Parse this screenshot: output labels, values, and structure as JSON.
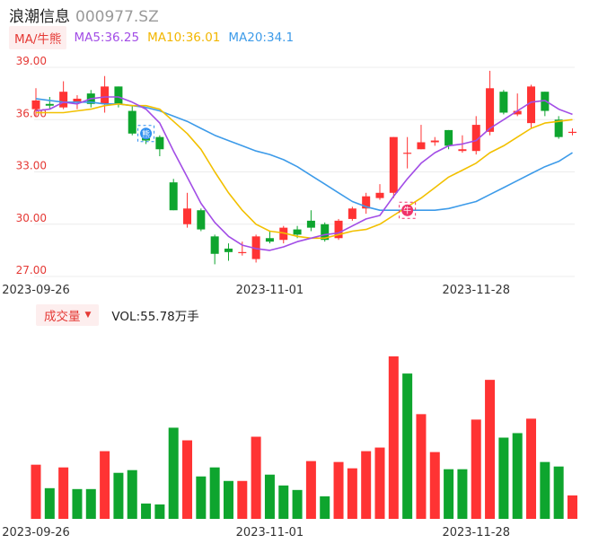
{
  "header": {
    "name": "浪潮信息",
    "code": "000977.SZ"
  },
  "ma_legend": {
    "toggle_label": "MA/牛熊",
    "ma5": "MA5:36.25",
    "ma10": "MA10:36.01",
    "ma20": "MA20:34.1"
  },
  "volume_legend": {
    "toggle_label": "成交量",
    "value": "VOL:55.78万手"
  },
  "colors": {
    "up": "#ff3333",
    "down": "#0ea52e",
    "ma5": "#a24de6",
    "ma10": "#f2c000",
    "ma20": "#3d9be9",
    "grid": "#ececec",
    "axis_label": "#e53935"
  },
  "markers": {
    "sell": "熊",
    "buy": "牛"
  },
  "chart_data": [
    {
      "type": "candlestick",
      "y_ticks": [
        "39.00",
        "36.00",
        "33.00",
        "30.00",
        "27.00"
      ],
      "ylim": [
        27.0,
        39.0
      ],
      "x_tick_labels": [
        {
          "index": 0,
          "label": "2023-09-26"
        },
        {
          "index": 17,
          "label": "2023-11-01"
        },
        {
          "index": 32,
          "label": "2023-11-28"
        }
      ],
      "candles": [
        {
          "o": 36.6,
          "c": 37.1,
          "h": 37.8,
          "l": 36.2
        },
        {
          "o": 36.9,
          "c": 36.8,
          "h": 37.3,
          "l": 36.6
        },
        {
          "o": 36.7,
          "c": 37.6,
          "h": 38.2,
          "l": 36.6
        },
        {
          "o": 37.0,
          "c": 37.2,
          "h": 37.4,
          "l": 36.6
        },
        {
          "o": 37.5,
          "c": 36.9,
          "h": 37.7,
          "l": 36.7
        },
        {
          "o": 36.9,
          "c": 37.9,
          "h": 38.5,
          "l": 36.4
        },
        {
          "o": 37.9,
          "c": 36.9,
          "h": 37.9,
          "l": 36.7
        },
        {
          "o": 36.5,
          "c": 35.2,
          "h": 36.8,
          "l": 35.1
        },
        {
          "o": 35.2,
          "c": 34.8,
          "h": 35.3,
          "l": 34.6
        },
        {
          "o": 35.0,
          "c": 34.3,
          "h": 35.1,
          "l": 33.9
        },
        {
          "o": 32.4,
          "c": 30.8,
          "h": 32.6,
          "l": 30.8
        },
        {
          "o": 30.0,
          "c": 30.9,
          "h": 31.8,
          "l": 29.8
        },
        {
          "o": 30.8,
          "c": 29.7,
          "h": 30.9,
          "l": 29.6
        },
        {
          "o": 29.3,
          "c": 28.3,
          "h": 29.4,
          "l": 27.7
        },
        {
          "o": 28.6,
          "c": 28.4,
          "h": 28.9,
          "l": 27.9
        },
        {
          "o": 28.4,
          "c": 28.4,
          "h": 29.0,
          "l": 28.2
        },
        {
          "o": 28.0,
          "c": 29.3,
          "h": 29.4,
          "l": 27.8
        },
        {
          "o": 29.2,
          "c": 29.0,
          "h": 29.6,
          "l": 28.9
        },
        {
          "o": 29.1,
          "c": 29.8,
          "h": 29.9,
          "l": 28.9
        },
        {
          "o": 29.7,
          "c": 29.4,
          "h": 29.9,
          "l": 29.2
        },
        {
          "o": 30.2,
          "c": 29.8,
          "h": 30.8,
          "l": 29.6
        },
        {
          "o": 30.0,
          "c": 29.1,
          "h": 30.1,
          "l": 29.0
        },
        {
          "o": 29.2,
          "c": 30.2,
          "h": 30.3,
          "l": 29.1
        },
        {
          "o": 30.3,
          "c": 30.9,
          "h": 31.0,
          "l": 30.2
        },
        {
          "o": 30.9,
          "c": 31.6,
          "h": 31.8,
          "l": 30.6
        },
        {
          "o": 31.5,
          "c": 31.8,
          "h": 32.3,
          "l": 31.4
        },
        {
          "o": 31.8,
          "c": 35.0,
          "h": 35.0,
          "l": 31.5
        },
        {
          "o": 34.1,
          "c": 34.1,
          "h": 35.0,
          "l": 33.2
        },
        {
          "o": 34.3,
          "c": 34.7,
          "h": 35.7,
          "l": 34.3
        },
        {
          "o": 34.7,
          "c": 34.8,
          "h": 35.0,
          "l": 34.5
        },
        {
          "o": 35.4,
          "c": 34.5,
          "h": 35.4,
          "l": 34.3
        },
        {
          "o": 34.2,
          "c": 34.3,
          "h": 35.1,
          "l": 34.1
        },
        {
          "o": 34.2,
          "c": 35.7,
          "h": 36.2,
          "l": 34.0
        },
        {
          "o": 35.3,
          "c": 37.8,
          "h": 38.8,
          "l": 35.1
        },
        {
          "o": 37.6,
          "c": 36.4,
          "h": 37.7,
          "l": 36.3
        },
        {
          "o": 36.3,
          "c": 36.5,
          "h": 37.5,
          "l": 36.2
        },
        {
          "o": 35.8,
          "c": 37.9,
          "h": 38.0,
          "l": 35.5
        },
        {
          "o": 37.6,
          "c": 36.5,
          "h": 37.6,
          "l": 36.2
        },
        {
          "o": 36.0,
          "c": 35.0,
          "h": 36.2,
          "l": 34.9
        },
        {
          "o": 35.3,
          "c": 35.3,
          "h": 35.5,
          "l": 35.1
        }
      ],
      "ma5": [
        36.5,
        36.6,
        37.0,
        36.9,
        37.2,
        37.3,
        37.3,
        37.0,
        36.6,
        35.8,
        34.2,
        32.7,
        31.2,
        30.1,
        29.3,
        28.8,
        28.6,
        28.5,
        28.7,
        29.0,
        29.2,
        29.4,
        29.5,
        29.9,
        30.3,
        30.5,
        31.6,
        32.6,
        33.5,
        34.1,
        34.5,
        34.6,
        34.8,
        35.5,
        36.0,
        36.5,
        37.0,
        37.1,
        36.6,
        36.3
      ],
      "ma10": [
        36.4,
        36.4,
        36.4,
        36.5,
        36.6,
        36.8,
        36.9,
        36.8,
        36.8,
        36.6,
        35.9,
        35.2,
        34.3,
        33.0,
        31.8,
        30.8,
        30.0,
        29.6,
        29.5,
        29.3,
        29.2,
        29.2,
        29.4,
        29.6,
        29.7,
        30.0,
        30.5,
        31.0,
        31.5,
        32.1,
        32.7,
        33.1,
        33.5,
        34.1,
        34.5,
        35.0,
        35.5,
        35.8,
        35.9,
        36.0
      ],
      "ma20": [
        37.2,
        37.1,
        37.0,
        37.0,
        37.0,
        36.9,
        36.9,
        36.8,
        36.7,
        36.5,
        36.2,
        35.9,
        35.5,
        35.1,
        34.8,
        34.5,
        34.2,
        34.0,
        33.7,
        33.3,
        32.8,
        32.3,
        31.8,
        31.3,
        31.0,
        30.8,
        30.8,
        30.8,
        30.8,
        30.8,
        30.9,
        31.1,
        31.3,
        31.7,
        32.1,
        32.5,
        32.9,
        33.3,
        33.6,
        34.1
      ],
      "signals": [
        {
          "index": 8,
          "type": "sell",
          "price": 35.2
        },
        {
          "index": 27,
          "type": "buy",
          "price": 30.8
        }
      ]
    },
    {
      "type": "bar",
      "title": "成交量",
      "values": [
        30,
        17,
        28.5,
        16.5,
        16.5,
        37.5,
        25.5,
        27,
        8.5,
        8,
        50.5,
        43.5,
        23.5,
        28.5,
        21,
        21,
        45.5,
        24.5,
        18.5,
        16,
        32,
        12.5,
        31.5,
        28,
        37.5,
        39.5,
        90,
        80.5,
        58,
        37,
        27.5,
        27.5,
        55,
        77,
        45,
        47.5,
        55.5,
        31.5,
        29,
        13
      ],
      "up": [
        true,
        false,
        true,
        false,
        false,
        true,
        false,
        false,
        false,
        false,
        false,
        true,
        false,
        false,
        false,
        true,
        true,
        false,
        false,
        false,
        true,
        false,
        true,
        true,
        true,
        true,
        true,
        false,
        true,
        true,
        false,
        false,
        true,
        true,
        false,
        false,
        true,
        false,
        false,
        true
      ]
    }
  ]
}
